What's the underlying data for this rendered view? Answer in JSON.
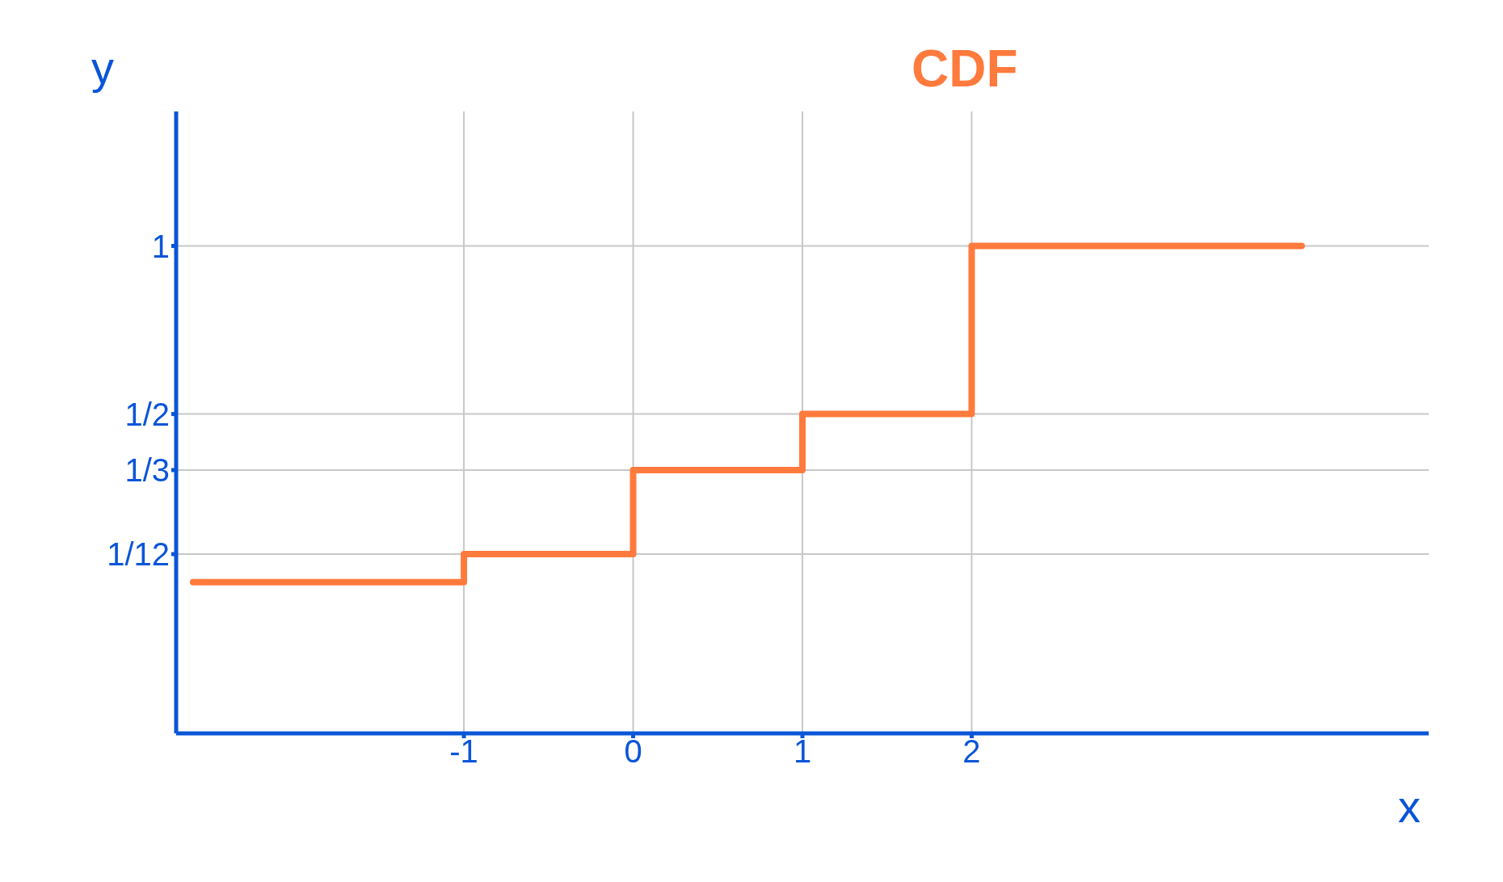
{
  "chart_data": {
    "type": "step",
    "title": "CDF",
    "xlabel": "x",
    "ylabel": "y",
    "x": [
      -2.6,
      -1,
      0,
      1,
      2,
      3.95
    ],
    "series": [
      {
        "color": "#ff7a3d",
        "values": [
          0,
          0.0833,
          0.3333,
          0.5,
          1,
          1
        ]
      }
    ],
    "xlim": [
      -2.7,
      4.7
    ],
    "ylim": [
      -0.45,
      1.4
    ],
    "xticks": [
      -1,
      0,
      1,
      2
    ],
    "yticks": [
      {
        "value": 0.0833,
        "label": "1/12"
      },
      {
        "value": 0.3333,
        "label": "1/3"
      },
      {
        "value": 0.5,
        "label": "1/2"
      },
      1
    ],
    "grid": true,
    "marker": "none",
    "line_style": "solid"
  }
}
